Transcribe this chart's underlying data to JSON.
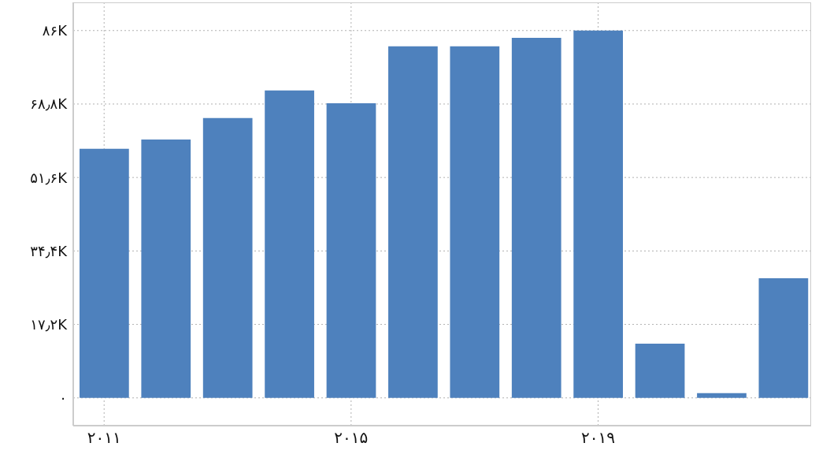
{
  "chart_data": {
    "type": "bar",
    "x": [
      2011,
      2012,
      2013,
      2014,
      2015,
      2016,
      2017,
      2018,
      2019,
      2020,
      2021,
      2022
    ],
    "values": [
      58300,
      60500,
      65500,
      72000,
      69000,
      82300,
      82300,
      84300,
      86000,
      12700,
      1100,
      28000
    ],
    "color": "#4e81bd",
    "xlim": [
      2010.5,
      2022.45
    ],
    "xticks": [
      {
        "value": 2011,
        "label": "۲۰۱۱"
      },
      {
        "value": 2015,
        "label": "۲۰۱۵"
      },
      {
        "value": 2019,
        "label": "۲۰۱۹"
      }
    ],
    "ylim": [
      -6500,
      92600
    ],
    "yticks": [
      {
        "value": 0,
        "label": "۰"
      },
      {
        "value": 17200,
        "label": "۱۷٫۲K"
      },
      {
        "value": 34400,
        "label": "۳۴٫۴K"
      },
      {
        "value": 51600,
        "label": "۵۱٫۶K"
      },
      {
        "value": 68800,
        "label": "۶۸٫۸K"
      },
      {
        "value": 86000,
        "label": "۸۶K"
      }
    ],
    "grid": true
  }
}
